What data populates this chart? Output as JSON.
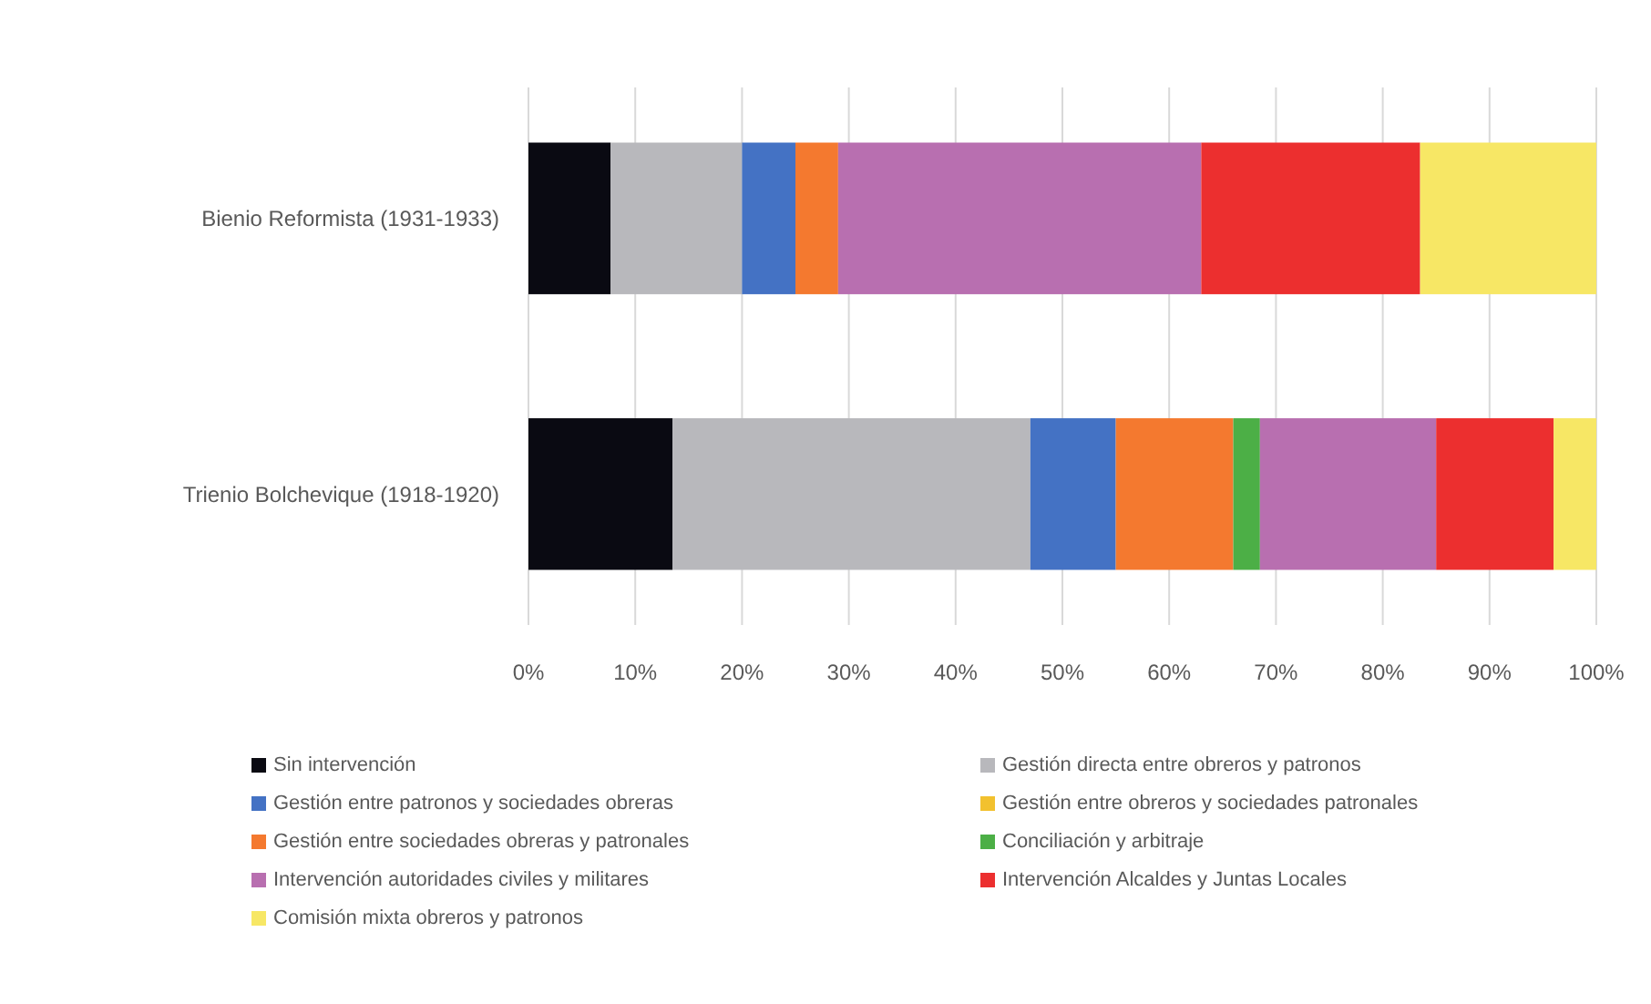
{
  "chart_data": {
    "type": "bar",
    "orientation": "horizontal",
    "stacked": true,
    "categories": [
      "Bienio Reformista (1931-1933)",
      "Trienio Bolchevique (1918-1920)"
    ],
    "series": [
      {
        "name": "Sin intervención",
        "color": "#0a0a12",
        "values": [
          7.7,
          13.5
        ]
      },
      {
        "name": "Gestión directa entre obreros y patronos",
        "color": "#b8b8bc",
        "values": [
          12.3,
          33.5
        ]
      },
      {
        "name": "Gestión entre patronos y sociedades obreras",
        "color": "#4472c4",
        "values": [
          5,
          8
        ]
      },
      {
        "name": "Gestión entre obreros y sociedades patronales",
        "color": "#f2c12e",
        "values": [
          0,
          0
        ]
      },
      {
        "name": "Gestión entre sociedades obreras y patronales",
        "color": "#f4792f",
        "values": [
          4,
          11
        ]
      },
      {
        "name": "Conciliación y arbitraje",
        "color": "#4caf46",
        "values": [
          0,
          2.5
        ]
      },
      {
        "name": "Intervención autoridades civiles y militares",
        "color": "#b86fb0",
        "values": [
          34,
          16.5
        ]
      },
      {
        "name": "Intervención Alcaldes y Juntas Locales",
        "color": "#ec2f2f",
        "values": [
          20.5,
          11
        ]
      },
      {
        "name": "Comisión mixta obreros y patronos",
        "color": "#f7e765",
        "values": [
          16.5,
          4
        ]
      }
    ],
    "xlim": [
      0,
      100
    ],
    "xticks": [
      {
        "value": 0,
        "label": "0%"
      },
      {
        "value": 10,
        "label": "10%"
      },
      {
        "value": 20,
        "label": "20%"
      },
      {
        "value": 30,
        "label": "30%"
      },
      {
        "value": 40,
        "label": "40%"
      },
      {
        "value": 50,
        "label": "50%"
      },
      {
        "value": 60,
        "label": "60%"
      },
      {
        "value": 70,
        "label": "70%"
      },
      {
        "value": 80,
        "label": "80%"
      },
      {
        "value": 90,
        "label": "90%"
      },
      {
        "value": 100,
        "label": "100%"
      }
    ],
    "grid": "x",
    "legend": "bottom"
  }
}
